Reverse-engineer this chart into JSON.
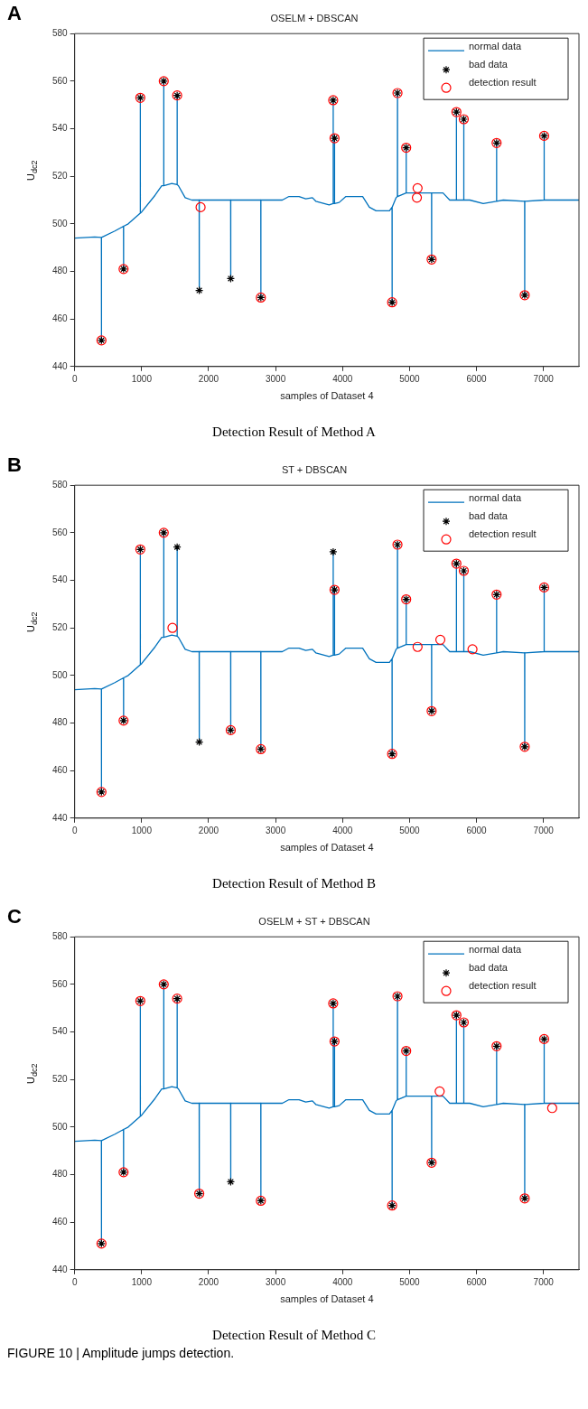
{
  "chart_data": [
    {
      "type": "line",
      "title": "OSELM + DBSCAN",
      "xlabel": "samples of Dataset 4",
      "ylabel": "U$_{dc2}$",
      "annotations": [
        "A",
        "Detection Result of Method A"
      ],
      "xlim": [
        0,
        7530
      ],
      "xticks": [
        0,
        1000,
        2000,
        3000,
        4000,
        5000,
        6000,
        7000
      ],
      "ylim": [
        440,
        580
      ],
      "yticks": [
        440,
        460,
        480,
        500,
        520,
        540,
        560,
        580
      ],
      "legend": "top right",
      "series": [
        {
          "name": "normal data",
          "type": "line",
          "color": "#0072bd",
          "x": [
            0,
            300,
            399,
            400,
            401,
            600,
            729,
            730,
            731,
            800,
            979,
            980,
            981,
            1000,
            1200,
            1300,
            1329,
            1330,
            1331,
            1450,
            1529,
            1530,
            1531,
            1550,
            1650,
            1750,
            1859,
            1860,
            1861,
            2329,
            2330,
            2331,
            2779,
            2780,
            2781,
            3100,
            3200,
            3350,
            3450,
            3550,
            3600,
            3800,
            3859,
            3860,
            3861,
            3879,
            3880,
            3881,
            3950,
            4050,
            4300,
            4400,
            4500,
            4700,
            4739,
            4740,
            4741,
            4800,
            4819,
            4820,
            4821,
            4949,
            4950,
            4951,
            5000,
            5329,
            5330,
            5331,
            5500,
            5600,
            5699,
            5700,
            5701,
            5809,
            5810,
            5811,
            5900,
            6100,
            6299,
            6300,
            6301,
            6400,
            6719,
            6720,
            6721,
            7009,
            7010,
            7011,
            7530
          ],
          "values": [
            494,
            494.5,
            494.3,
            451,
            494.3,
            497,
            499,
            481,
            499,
            500,
            504.5,
            553,
            504.5,
            505,
            512,
            516,
            516,
            560,
            516,
            517,
            516.5,
            554,
            516.5,
            516,
            511,
            510,
            510,
            472,
            510,
            510,
            477,
            510,
            510,
            469,
            510,
            510,
            511.5,
            511.5,
            510.5,
            511,
            509.5,
            508,
            508.5,
            552,
            508.5,
            508.5,
            536,
            508.5,
            509,
            511.5,
            511.5,
            507,
            505.5,
            505.5,
            507,
            467,
            507,
            511,
            511.5,
            555,
            511.5,
            513,
            532,
            513,
            513,
            513,
            485,
            513,
            513,
            510,
            510,
            547,
            510,
            510,
            544,
            510,
            510,
            508.5,
            509.5,
            534,
            509.5,
            510,
            509.5,
            470,
            509.5,
            510,
            537,
            510,
            510
          ]
        },
        {
          "name": "bad data",
          "type": "scatter",
          "marker": "cross",
          "color": "#000000",
          "x": [
            400,
            730,
            980,
            1330,
            1530,
            1860,
            2330,
            2780,
            3860,
            3880,
            4740,
            4820,
            4950,
            5330,
            5700,
            5810,
            6300,
            6720,
            7010
          ],
          "values": [
            451,
            481,
            553,
            560,
            554,
            472,
            477,
            469,
            552,
            536,
            467,
            555,
            532,
            485,
            547,
            544,
            534,
            470,
            537
          ]
        },
        {
          "name": "detection result",
          "type": "scatter",
          "marker": "circle",
          "color": "#ff0000",
          "x": [
            400,
            730,
            980,
            1330,
            1530,
            1880,
            2780,
            3860,
            3880,
            4740,
            4820,
            4950,
            5110,
            5120,
            5330,
            5700,
            5810,
            6300,
            6720,
            7010
          ],
          "values": [
            451,
            481,
            553,
            560,
            554,
            507,
            469,
            552,
            536,
            467,
            555,
            532,
            511,
            515,
            485,
            547,
            544,
            534,
            470,
            537
          ]
        }
      ]
    },
    {
      "type": "line",
      "title": "ST + DBSCAN",
      "xlabel": "samples of Dataset 4",
      "ylabel": "U$_{dc2}$",
      "annotations": [
        "B",
        "Detection Result of Method B"
      ],
      "xlim": [
        0,
        7530
      ],
      "xticks": [
        0,
        1000,
        2000,
        3000,
        4000,
        5000,
        6000,
        7000
      ],
      "ylim": [
        440,
        580
      ],
      "yticks": [
        440,
        460,
        480,
        500,
        520,
        540,
        560,
        580
      ],
      "legend": "top right",
      "series": [
        {
          "name": "normal data",
          "type": "line",
          "color": "#0072bd",
          "x": [
            0,
            300,
            399,
            400,
            401,
            600,
            729,
            730,
            731,
            800,
            979,
            980,
            981,
            1000,
            1200,
            1300,
            1329,
            1330,
            1331,
            1450,
            1529,
            1530,
            1531,
            1550,
            1650,
            1750,
            1859,
            1860,
            1861,
            2329,
            2330,
            2331,
            2779,
            2780,
            2781,
            3100,
            3200,
            3350,
            3450,
            3550,
            3600,
            3800,
            3859,
            3860,
            3861,
            3879,
            3880,
            3881,
            3950,
            4050,
            4300,
            4400,
            4500,
            4700,
            4739,
            4740,
            4741,
            4800,
            4819,
            4820,
            4821,
            4949,
            4950,
            4951,
            5000,
            5329,
            5330,
            5331,
            5500,
            5600,
            5699,
            5700,
            5701,
            5809,
            5810,
            5811,
            5900,
            6100,
            6299,
            6300,
            6301,
            6400,
            6719,
            6720,
            6721,
            7009,
            7010,
            7011,
            7530
          ],
          "values": [
            494,
            494.5,
            494.3,
            451,
            494.3,
            497,
            499,
            481,
            499,
            500,
            504.5,
            553,
            504.5,
            505,
            512,
            516,
            516,
            560,
            516,
            517,
            516.5,
            554,
            516.5,
            516,
            511,
            510,
            510,
            472,
            510,
            510,
            477,
            510,
            510,
            469,
            510,
            510,
            511.5,
            511.5,
            510.5,
            511,
            509.5,
            508,
            508.5,
            552,
            508.5,
            508.5,
            536,
            508.5,
            509,
            511.5,
            511.5,
            507,
            505.5,
            505.5,
            507,
            467,
            507,
            511,
            511.5,
            555,
            511.5,
            513,
            532,
            513,
            513,
            513,
            485,
            513,
            513,
            510,
            510,
            547,
            510,
            510,
            544,
            510,
            510,
            508.5,
            509.5,
            534,
            509.5,
            510,
            509.5,
            470,
            509.5,
            510,
            537,
            510,
            510
          ]
        },
        {
          "name": "bad data",
          "type": "scatter",
          "marker": "cross",
          "color": "#000000",
          "x": [
            400,
            730,
            980,
            1330,
            1530,
            1860,
            2330,
            2780,
            3860,
            3880,
            4740,
            4820,
            4950,
            5330,
            5700,
            5810,
            6300,
            6720,
            7010
          ],
          "values": [
            451,
            481,
            553,
            560,
            554,
            472,
            477,
            469,
            552,
            536,
            467,
            555,
            532,
            485,
            547,
            544,
            534,
            470,
            537
          ]
        },
        {
          "name": "detection result",
          "type": "scatter",
          "marker": "circle",
          "color": "#ff0000",
          "x": [
            400,
            730,
            980,
            1330,
            1460,
            2330,
            2780,
            3880,
            4740,
            4820,
            4950,
            5120,
            5330,
            5460,
            5700,
            5810,
            5940,
            6300,
            6720,
            7010
          ],
          "values": [
            451,
            481,
            553,
            560,
            520,
            477,
            469,
            536,
            467,
            555,
            532,
            512,
            485,
            515,
            547,
            544,
            511,
            534,
            470,
            537
          ]
        }
      ]
    },
    {
      "type": "line",
      "title": "OSELM + ST + DBSCAN",
      "xlabel": "samples of Dataset 4",
      "ylabel": "U$_{dc2}$",
      "annotations": [
        "C",
        "Detection Result of Method C",
        "FIGURE 10 | Amplitude jumps detection."
      ],
      "xlim": [
        0,
        7530
      ],
      "xticks": [
        0,
        1000,
        2000,
        3000,
        4000,
        5000,
        6000,
        7000
      ],
      "ylim": [
        440,
        580
      ],
      "yticks": [
        440,
        460,
        480,
        500,
        520,
        540,
        560,
        580
      ],
      "legend": "top right",
      "series": [
        {
          "name": "normal data",
          "type": "line",
          "color": "#0072bd",
          "x": [
            0,
            300,
            399,
            400,
            401,
            600,
            729,
            730,
            731,
            800,
            979,
            980,
            981,
            1000,
            1200,
            1300,
            1329,
            1330,
            1331,
            1450,
            1529,
            1530,
            1531,
            1550,
            1650,
            1750,
            1859,
            1860,
            1861,
            2329,
            2330,
            2331,
            2779,
            2780,
            2781,
            3100,
            3200,
            3350,
            3450,
            3550,
            3600,
            3800,
            3859,
            3860,
            3861,
            3879,
            3880,
            3881,
            3950,
            4050,
            4300,
            4400,
            4500,
            4700,
            4739,
            4740,
            4741,
            4800,
            4819,
            4820,
            4821,
            4949,
            4950,
            4951,
            5000,
            5329,
            5330,
            5331,
            5500,
            5600,
            5699,
            5700,
            5701,
            5809,
            5810,
            5811,
            5900,
            6100,
            6299,
            6300,
            6301,
            6400,
            6719,
            6720,
            6721,
            7009,
            7010,
            7011,
            7530
          ],
          "values": [
            494,
            494.5,
            494.3,
            451,
            494.3,
            497,
            499,
            481,
            499,
            500,
            504.5,
            553,
            504.5,
            505,
            512,
            516,
            516,
            560,
            516,
            517,
            516.5,
            554,
            516.5,
            516,
            511,
            510,
            510,
            472,
            510,
            510,
            477,
            510,
            510,
            469,
            510,
            510,
            511.5,
            511.5,
            510.5,
            511,
            509.5,
            508,
            508.5,
            552,
            508.5,
            508.5,
            536,
            508.5,
            509,
            511.5,
            511.5,
            507,
            505.5,
            505.5,
            507,
            467,
            507,
            511,
            511.5,
            555,
            511.5,
            513,
            532,
            513,
            513,
            513,
            485,
            513,
            513,
            510,
            510,
            547,
            510,
            510,
            544,
            510,
            510,
            508.5,
            509.5,
            534,
            509.5,
            510,
            509.5,
            470,
            509.5,
            510,
            537,
            510,
            510
          ]
        },
        {
          "name": "bad data",
          "type": "scatter",
          "marker": "cross",
          "color": "#000000",
          "x": [
            400,
            730,
            980,
            1330,
            1530,
            1860,
            2330,
            2780,
            3860,
            3880,
            4740,
            4820,
            4950,
            5330,
            5700,
            5810,
            6300,
            6720,
            7010
          ],
          "values": [
            451,
            481,
            553,
            560,
            554,
            472,
            477,
            469,
            552,
            536,
            467,
            555,
            532,
            485,
            547,
            544,
            534,
            470,
            537
          ]
        },
        {
          "name": "detection result",
          "type": "scatter",
          "marker": "circle",
          "color": "#ff0000",
          "x": [
            400,
            730,
            980,
            1330,
            1530,
            1860,
            2780,
            3860,
            3880,
            4740,
            4820,
            4950,
            5330,
            5450,
            5700,
            5810,
            6300,
            6720,
            7010,
            7130
          ],
          "values": [
            451,
            481,
            553,
            560,
            554,
            472,
            469,
            552,
            536,
            467,
            555,
            532,
            485,
            515,
            547,
            544,
            534,
            470,
            537,
            508
          ]
        }
      ]
    }
  ]
}
